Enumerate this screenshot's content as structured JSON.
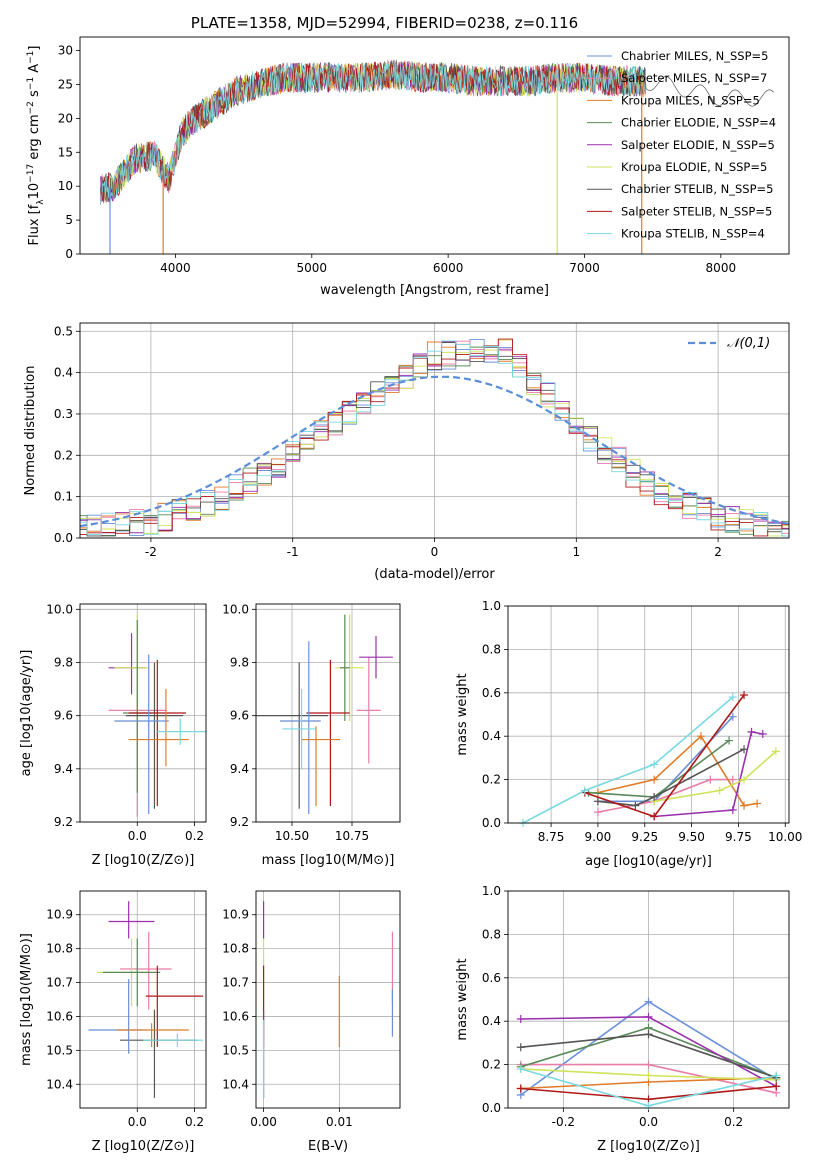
{
  "chart_data": [
    {
      "type": "line",
      "title": "PLATE=1358, MJD=52994, FIBERID=0238, z=0.116",
      "xlabel": "wavelength [Angstrom, rest frame]",
      "ylabel": "Flux [f_λ10^-17 erg cm^-2 s^-1 A^-1]",
      "xlim": [
        3300,
        8500
      ],
      "ylim": [
        0,
        32
      ],
      "xticks": [
        4000,
        5000,
        6000,
        7000,
        8000
      ],
      "yticks": [
        0,
        5,
        10,
        15,
        20,
        25,
        30
      ],
      "legend_position": "top-right",
      "series": [
        {
          "name": "Chabrier MILES, N_SSP=5",
          "color": "#6a8fd8"
        },
        {
          "name": "Salpeter MILES, N_SSP=7",
          "color": "#e87da8"
        },
        {
          "name": "Kroupa MILES, N_SSP=5",
          "color": "#e07b28"
        },
        {
          "name": "Chabrier ELODIE, N_SSP=4",
          "color": "#5a8a5a"
        },
        {
          "name": "Salpeter ELODIE, N_SSP=5",
          "color": "#9a2fae"
        },
        {
          "name": "Kroupa ELODIE, N_SSP=5",
          "color": "#cfe35a"
        },
        {
          "name": "Chabrier STELIB, N_SSP=5",
          "color": "#555555"
        },
        {
          "name": "Salpeter STELIB, N_SSP=5",
          "color": "#b01818"
        },
        {
          "name": "Kroupa STELIB, N_SSP=4",
          "color": "#7ad8e0"
        }
      ],
      "spectrum_envelope": {
        "x": [
          3450,
          3550,
          3700,
          3850,
          3950,
          4050,
          4150,
          4300,
          4450,
          4600,
          4800,
          5000,
          5200,
          5400,
          5600,
          5800,
          6000,
          6200,
          6400,
          6600,
          6800,
          7000,
          7200,
          7400,
          7600,
          7800,
          8000,
          8200,
          8400
        ],
        "y": [
          9.5,
          10,
          14,
          14.5,
          11,
          18,
          20,
          22,
          24,
          25,
          26,
          26,
          26,
          26,
          26.5,
          26,
          26,
          25.5,
          25.5,
          25.5,
          26,
          26,
          25.5,
          25.5,
          25,
          24,
          23,
          23,
          23
        ]
      }
    },
    {
      "type": "line",
      "xlabel": "(data-model)/error",
      "ylabel": "Normed distribution",
      "xlim": [
        -2.5,
        2.5
      ],
      "ylim": [
        0,
        0.52
      ],
      "xticks": [
        -2,
        -1,
        0,
        1,
        2
      ],
      "yticks": [
        0.0,
        0.1,
        0.2,
        0.3,
        0.4,
        0.5
      ],
      "grid": true,
      "legend_position": "top-right",
      "legend": "𝒩(0,1)",
      "gaussian_color": "#5a8fd8",
      "hist_envelope": {
        "x": [
          -2.5,
          -2,
          -1.5,
          -1,
          -0.5,
          0,
          0.5,
          1,
          1.5,
          2,
          2.5
        ],
        "y": [
          0.02,
          0.04,
          0.1,
          0.2,
          0.33,
          0.44,
          0.45,
          0.27,
          0.13,
          0.05,
          0.02
        ]
      }
    },
    {
      "type": "scatter",
      "xlabel": "Z [log10(Z/Z⊙)]",
      "ylabel": "age  [log10(age/yr)]",
      "xlim": [
        -0.2,
        0.24
      ],
      "ylim": [
        9.2,
        10.02
      ],
      "xticks": [
        0.0,
        0.2
      ],
      "yticks": [
        9.2,
        9.4,
        9.6,
        9.8,
        10.0
      ],
      "points": [
        {
          "x": 0.0,
          "y": 9.62,
          "xerr": [
            0.1,
            0.1
          ],
          "yerr": [
            0.4,
            0.15
          ],
          "color": "#e87da8"
        },
        {
          "x": -0.02,
          "y": 9.78,
          "xerr": [
            0.08,
            0.05
          ],
          "yerr": [
            0.1,
            0.13
          ],
          "color": "#9a2fae"
        },
        {
          "x": 0.0,
          "y": 9.78,
          "xerr": [
            0.08,
            0.04
          ],
          "yerr": [
            0.2,
            0.2
          ],
          "color": "#cfe35a"
        },
        {
          "x": 0.0,
          "y": 9.61,
          "xerr": [
            0.05,
            0.05
          ],
          "yerr": [
            0.3,
            0.35
          ],
          "color": "#5a8a5a"
        },
        {
          "x": 0.06,
          "y": 9.6,
          "xerr": [
            0.1,
            0.1
          ],
          "yerr": [
            0.35,
            0.2
          ],
          "color": "#555555"
        },
        {
          "x": 0.07,
          "y": 9.61,
          "xerr": [
            0.1,
            0.1
          ],
          "yerr": [
            0.35,
            0.2
          ],
          "color": "#b01818"
        },
        {
          "x": 0.04,
          "y": 9.58,
          "xerr": [
            0.12,
            0.07
          ],
          "yerr": [
            0.35,
            0.25
          ],
          "color": "#6a8fd8"
        },
        {
          "x": 0.1,
          "y": 9.51,
          "xerr": [
            0.13,
            0.08
          ],
          "yerr": [
            0.1,
            0.19
          ],
          "color": "#e07b28"
        },
        {
          "x": 0.15,
          "y": 9.54,
          "xerr": [
            0.08,
            0.09
          ],
          "yerr": [
            0.05,
            0.05
          ],
          "color": "#7ad8e0"
        }
      ]
    },
    {
      "type": "scatter",
      "xlabel": "mass [log10(M/M⊙)]",
      "xlim": [
        10.35,
        10.95
      ],
      "ylim": [
        9.2,
        10.02
      ],
      "xticks": [
        10.5,
        10.75
      ],
      "yticks": [
        9.2,
        9.4,
        9.6,
        9.8,
        10.0
      ],
      "points": [
        {
          "x": 10.82,
          "y": 9.62,
          "xerr": [
            0.05,
            0.05
          ],
          "yerr": [
            0.2,
            0.2
          ],
          "color": "#e87da8"
        },
        {
          "x": 10.85,
          "y": 9.82,
          "xerr": [
            0.07,
            0.07
          ],
          "yerr": [
            0.08,
            0.08
          ],
          "color": "#9a2fae"
        },
        {
          "x": 10.74,
          "y": 9.78,
          "xerr": [
            0.06,
            0.06
          ],
          "yerr": [
            0.2,
            0.2
          ],
          "color": "#cfe35a"
        },
        {
          "x": 10.72,
          "y": 9.78,
          "xerr": [
            0.02,
            0.02
          ],
          "yerr": [
            0.2,
            0.2
          ],
          "color": "#5a8a5a"
        },
        {
          "x": 10.53,
          "y": 9.6,
          "xerr": [
            0.18,
            0.12
          ],
          "yerr": [
            0.35,
            0.2
          ],
          "color": "#555555"
        },
        {
          "x": 10.66,
          "y": 9.61,
          "xerr": [
            0.1,
            0.08
          ],
          "yerr": [
            0.35,
            0.2
          ],
          "color": "#b01818"
        },
        {
          "x": 10.57,
          "y": 9.58,
          "xerr": [
            0.12,
            0.05
          ],
          "yerr": [
            0.35,
            0.3
          ],
          "color": "#6a8fd8"
        },
        {
          "x": 10.6,
          "y": 9.51,
          "xerr": [
            0.06,
            0.1
          ],
          "yerr": [
            0.25,
            0.05
          ],
          "color": "#e07b28"
        },
        {
          "x": 10.54,
          "y": 9.55,
          "xerr": [
            0.08,
            0.06
          ],
          "yerr": [
            0.15,
            0.15
          ],
          "color": "#7ad8e0"
        }
      ]
    },
    {
      "type": "line",
      "xlabel": "age  [log10(age/yr)]",
      "ylabel": "mass weight",
      "xlim": [
        8.52,
        10.02
      ],
      "ylim": [
        0.0,
        1.0
      ],
      "xticks": [
        8.75,
        9.0,
        9.25,
        9.5,
        9.75,
        10.0
      ],
      "yticks": [
        0.0,
        0.2,
        0.4,
        0.6,
        0.8,
        1.0
      ],
      "grid": true,
      "series": [
        {
          "color": "#6a8fd8",
          "x": [
            9.0,
            9.3,
            9.72
          ],
          "y": [
            0.1,
            0.1,
            0.49
          ]
        },
        {
          "color": "#e87da8",
          "x": [
            9.0,
            9.3,
            9.6,
            9.72
          ],
          "y": [
            0.05,
            0.1,
            0.2,
            0.2
          ]
        },
        {
          "color": "#e07b28",
          "x": [
            9.0,
            9.3,
            9.55,
            9.78,
            9.85
          ],
          "y": [
            0.14,
            0.2,
            0.4,
            0.08,
            0.09
          ]
        },
        {
          "color": "#5a8a5a",
          "x": [
            8.95,
            9.3,
            9.7
          ],
          "y": [
            0.14,
            0.12,
            0.38
          ]
        },
        {
          "color": "#9a2fae",
          "x": [
            9.3,
            9.72,
            9.82,
            9.88
          ],
          "y": [
            0.03,
            0.06,
            0.42,
            0.41
          ]
        },
        {
          "color": "#cfe35a",
          "x": [
            9.3,
            9.65,
            9.78,
            9.95
          ],
          "y": [
            0.1,
            0.15,
            0.2,
            0.33
          ]
        },
        {
          "color": "#555555",
          "x": [
            9.0,
            9.2,
            9.3,
            9.78
          ],
          "y": [
            0.1,
            0.08,
            0.12,
            0.34
          ]
        },
        {
          "color": "#b01818",
          "x": [
            8.93,
            9.3,
            9.78
          ],
          "y": [
            0.14,
            0.03,
            0.59
          ]
        },
        {
          "color": "#7ad8e0",
          "x": [
            8.6,
            8.93,
            9.3,
            9.72
          ],
          "y": [
            0.0,
            0.15,
            0.27,
            0.58
          ]
        }
      ]
    },
    {
      "type": "scatter",
      "xlabel": "Z [log10(Z/Z⊙)]",
      "ylabel": "mass [log10(M/M⊙)]",
      "xlim": [
        -0.2,
        0.24
      ],
      "ylim": [
        10.33,
        10.97
      ],
      "xticks": [
        0.0,
        0.2
      ],
      "yticks": [
        10.4,
        10.5,
        10.6,
        10.7,
        10.8,
        10.9
      ],
      "points": [
        {
          "x": 0.04,
          "y": 10.74,
          "xerr": [
            0.1,
            0.08
          ],
          "yerr": [
            0.12,
            0.11
          ],
          "color": "#e87da8"
        },
        {
          "x": -0.03,
          "y": 10.88,
          "xerr": [
            0.07,
            0.09
          ],
          "yerr": [
            0.05,
            0.06
          ],
          "color": "#9a2fae"
        },
        {
          "x": -0.02,
          "y": 10.73,
          "xerr": [
            0.12,
            0.06
          ],
          "yerr": [
            0.1,
            0.1
          ],
          "color": "#cfe35a"
        },
        {
          "x": 0.0,
          "y": 10.73,
          "xerr": [
            0.12,
            0.08
          ],
          "yerr": [
            0.1,
            0.1
          ],
          "color": "#5a8a5a"
        },
        {
          "x": 0.06,
          "y": 10.53,
          "xerr": [
            0.12,
            0.15
          ],
          "yerr": [
            0.17,
            0.09
          ],
          "color": "#555555"
        },
        {
          "x": 0.07,
          "y": 10.66,
          "xerr": [
            0.04,
            0.16
          ],
          "yerr": [
            0.15,
            0.09
          ],
          "color": "#b01818"
        },
        {
          "x": -0.03,
          "y": 10.56,
          "xerr": [
            0.14,
            0.05
          ],
          "yerr": [
            0.07,
            0.15
          ],
          "color": "#6a8fd8"
        },
        {
          "x": 0.05,
          "y": 10.56,
          "xerr": [
            0.12,
            0.13
          ],
          "yerr": [
            0.05,
            0.02
          ],
          "color": "#e07b28"
        },
        {
          "x": 0.14,
          "y": 10.53,
          "xerr": [
            0.12,
            0.09
          ],
          "yerr": [
            0.02,
            0.02
          ],
          "color": "#7ad8e0"
        }
      ]
    },
    {
      "type": "scatter",
      "xlabel": "E(B-V)",
      "xlim": [
        -0.001,
        0.018
      ],
      "ylim": [
        10.33,
        10.97
      ],
      "xticks": [
        0.0,
        0.01
      ],
      "yticks": [
        10.4,
        10.5,
        10.6,
        10.7,
        10.8,
        10.9
      ],
      "points": [
        {
          "x": 0.0,
          "y": 10.88,
          "yerr": [
            0.05,
            0.06
          ],
          "color": "#9a2fae"
        },
        {
          "x": 0.0,
          "y": 10.73,
          "yerr": [
            0.1,
            0.1
          ],
          "color": "#cfe35a"
        },
        {
          "x": 0.0,
          "y": 10.66,
          "yerr": [
            0.15,
            0.09
          ],
          "color": "#b01818"
        },
        {
          "x": 0.0,
          "y": 10.53,
          "yerr": [
            0.17,
            0.09
          ],
          "color": "#555555"
        },
        {
          "x": 0.0,
          "y": 10.53,
          "yerr": [
            0.17,
            0.06
          ],
          "color": "#7ad8e0"
        },
        {
          "x": 0.01,
          "y": 10.61,
          "yerr": [
            0.1,
            0.11
          ],
          "color": "#e07b28"
        },
        {
          "x": 0.017,
          "y": 10.74,
          "yerr": [
            0.1,
            0.11
          ],
          "color": "#e87da8"
        },
        {
          "x": 0.017,
          "y": 10.62,
          "yerr": [
            0.08,
            0.06
          ],
          "color": "#6a8fd8"
        }
      ]
    },
    {
      "type": "line",
      "xlabel": "Z [log10(Z/Z⊙)]",
      "ylabel": "mass weight",
      "xlim": [
        -0.33,
        0.33
      ],
      "ylim": [
        0.0,
        1.0
      ],
      "xticks": [
        -0.2,
        0.0,
        0.2
      ],
      "yticks": [
        0.0,
        0.2,
        0.4,
        0.6,
        0.8,
        1.0
      ],
      "grid": true,
      "series": [
        {
          "color": "#6a8fd8",
          "x": [
            -0.3,
            0.0,
            0.3
          ],
          "y": [
            0.06,
            0.49,
            0.13
          ]
        },
        {
          "color": "#e87da8",
          "x": [
            -0.3,
            0.0,
            0.3
          ],
          "y": [
            0.2,
            0.2,
            0.07
          ]
        },
        {
          "color": "#e07b28",
          "x": [
            -0.3,
            0.0,
            0.3
          ],
          "y": [
            0.09,
            0.12,
            0.14
          ]
        },
        {
          "color": "#5a8a5a",
          "x": [
            -0.3,
            0.0,
            0.3
          ],
          "y": [
            0.19,
            0.37,
            0.14
          ]
        },
        {
          "color": "#9a2fae",
          "x": [
            -0.3,
            0.0,
            0.3
          ],
          "y": [
            0.41,
            0.42,
            0.1
          ]
        },
        {
          "color": "#cfe35a",
          "x": [
            -0.3,
            0.0,
            0.3
          ],
          "y": [
            0.18,
            0.15,
            0.13
          ]
        },
        {
          "color": "#555555",
          "x": [
            -0.3,
            0.0,
            0.3
          ],
          "y": [
            0.28,
            0.34,
            0.14
          ]
        },
        {
          "color": "#b01818",
          "x": [
            -0.3,
            0.0,
            0.3
          ],
          "y": [
            0.09,
            0.04,
            0.1
          ]
        },
        {
          "color": "#7ad8e0",
          "x": [
            -0.3,
            0.0,
            0.3
          ],
          "y": [
            0.18,
            0.01,
            0.15
          ]
        }
      ]
    }
  ]
}
